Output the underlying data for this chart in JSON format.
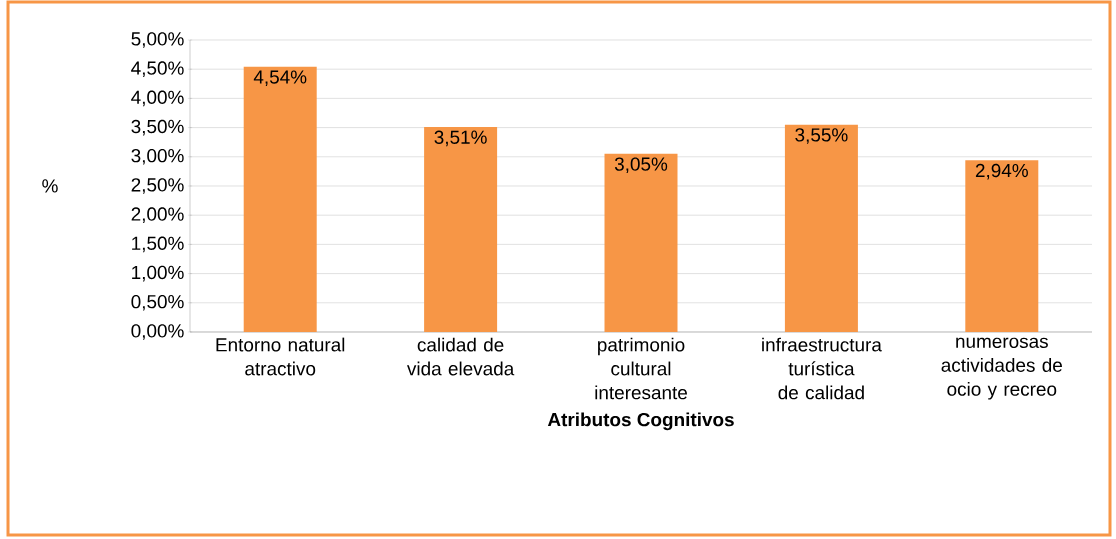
{
  "chart_data": {
    "type": "bar",
    "xlabel": "Atributos Cognitivos",
    "ylabel": "%",
    "categories": [
      "Entorno natural atractivo",
      "calidad de vida elevada",
      "patrimonio cultural interesante",
      "infraestructura turística de calidad",
      "numerosas actividades de ocio y recreo"
    ],
    "values": [
      4.54,
      3.51,
      3.05,
      3.55,
      2.94
    ],
    "value_labels": [
      "4,54%",
      "3,51%",
      "3,05%",
      "3,55%",
      "2,94%"
    ],
    "color": "#f79646",
    "ylim": [
      0,
      5
    ],
    "yticks": [
      {
        "value": 0,
        "label": "0,00%"
      },
      {
        "value": 0.5,
        "label": "0,50%"
      },
      {
        "value": 1,
        "label": "1,00%"
      },
      {
        "value": 1.5,
        "label": "1,50%"
      },
      {
        "value": 2,
        "label": "2,00%"
      },
      {
        "value": 2.5,
        "label": "2,50%"
      },
      {
        "value": 3,
        "label": "3,00%"
      },
      {
        "value": 3.5,
        "label": "3,50%"
      },
      {
        "value": 4,
        "label": "4,00%"
      },
      {
        "value": 4.5,
        "label": "4,50%"
      },
      {
        "value": 5,
        "label": "5,00%"
      }
    ],
    "grid": "y"
  }
}
